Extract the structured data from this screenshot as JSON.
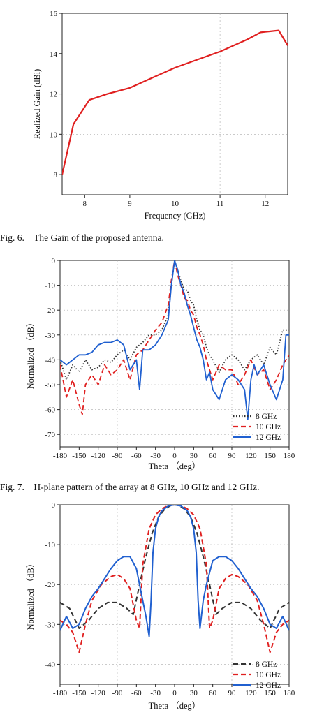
{
  "captions": {
    "fig6": "Fig. 6.    The Gain of the proposed antenna.",
    "fig7": "Fig. 7.    H-plane pattern of the array at 8 GHz, 10 GHz and 12 GHz."
  },
  "chart_data": [
    {
      "type": "line",
      "xlabel": "Frequency (GHz)",
      "ylabel": "Realized Gain (dBi)",
      "xlim": [
        7.5,
        12.5
      ],
      "ylim": [
        7,
        16
      ],
      "xticks": [
        "8",
        "9",
        "10",
        "11",
        "12"
      ],
      "yticks": [
        "8",
        "10",
        "12",
        "14",
        "16"
      ],
      "grid": "dotted",
      "series": [
        {
          "color": "#e02020",
          "style": "solid",
          "x": [
            7.5,
            7.6,
            7.75,
            8.1,
            8.5,
            9.0,
            9.5,
            10.0,
            10.5,
            11.0,
            11.3,
            11.6,
            11.9,
            12.1,
            12.3,
            12.5
          ],
          "y": [
            8.0,
            9.0,
            10.5,
            11.7,
            12.0,
            12.3,
            12.8,
            13.3,
            13.7,
            14.1,
            14.4,
            14.7,
            15.05,
            15.1,
            15.15,
            14.4
          ]
        }
      ]
    },
    {
      "type": "line",
      "xlabel": "Theta （deg）",
      "ylabel": "Normalized （dB）",
      "xlim": [
        -180,
        180
      ],
      "ylim": [
        -75,
        0
      ],
      "xticks": [
        "-180",
        "-150",
        "-120",
        "-90",
        "-60",
        "-30",
        "0",
        "30",
        "60",
        "90",
        "120",
        "150",
        "180"
      ],
      "yticks": [
        "0",
        "-10",
        "-20",
        "-30",
        "-40",
        "-50",
        "-60",
        "-70"
      ],
      "grid": "dotted",
      "legend_position": "bottom-right",
      "series": [
        {
          "name": "8 GHz",
          "color": "#333333",
          "style": "dotted",
          "x": [
            -180,
            -170,
            -160,
            -150,
            -140,
            -130,
            -120,
            -110,
            -100,
            -90,
            -80,
            -70,
            -60,
            -50,
            -40,
            -30,
            -20,
            -10,
            -5,
            0,
            5,
            10,
            15,
            20,
            25,
            30,
            35,
            40,
            45,
            50,
            55,
            60,
            70,
            80,
            90,
            100,
            110,
            120,
            130,
            140,
            150,
            160,
            170,
            180
          ],
          "y": [
            -40,
            -48,
            -42,
            -45,
            -40,
            -44,
            -43,
            -40,
            -41,
            -38,
            -36,
            -40,
            -35,
            -33,
            -30,
            -30,
            -28,
            -22,
            -10,
            0,
            -4,
            -8,
            -12,
            -12,
            -16,
            -18,
            -24,
            -28,
            -30,
            -35,
            -38,
            -40,
            -45,
            -40,
            -38,
            -40,
            -44,
            -40,
            -38,
            -42,
            -35,
            -38,
            -28,
            -28
          ]
        },
        {
          "name": "10 GHz",
          "color": "#e02020",
          "style": "dashed",
          "x": [
            -180,
            -170,
            -160,
            -150,
            -145,
            -140,
            -130,
            -120,
            -110,
            -100,
            -90,
            -80,
            -70,
            -60,
            -50,
            -40,
            -30,
            -20,
            -10,
            -5,
            0,
            5,
            10,
            15,
            20,
            25,
            30,
            35,
            40,
            45,
            50,
            55,
            60,
            70,
            80,
            90,
            100,
            110,
            120,
            130,
            140,
            150,
            160,
            170,
            180
          ],
          "y": [
            -42,
            -55,
            -48,
            -58,
            -62,
            -50,
            -46,
            -50,
            -42,
            -46,
            -44,
            -40,
            -48,
            -38,
            -36,
            -32,
            -28,
            -25,
            -18,
            -8,
            0,
            -6,
            -10,
            -15,
            -16,
            -20,
            -22,
            -27,
            -30,
            -34,
            -40,
            -44,
            -48,
            -42,
            -44,
            -44,
            -50,
            -46,
            -40,
            -46,
            -44,
            -52,
            -48,
            -42,
            -38
          ]
        },
        {
          "name": "12 GHz",
          "color": "#2060d0",
          "style": "solid",
          "x": [
            -180,
            -170,
            -160,
            -150,
            -140,
            -130,
            -120,
            -110,
            -100,
            -90,
            -80,
            -70,
            -60,
            -55,
            -50,
            -40,
            -30,
            -20,
            -10,
            -5,
            0,
            5,
            10,
            15,
            20,
            25,
            30,
            35,
            40,
            45,
            50,
            55,
            60,
            70,
            80,
            90,
            100,
            110,
            115,
            120,
            125,
            130,
            140,
            150,
            160,
            170,
            175,
            180
          ],
          "y": [
            -40,
            -42,
            -40,
            -38,
            -38,
            -37,
            -34,
            -33,
            -33,
            -32,
            -34,
            -44,
            -40,
            -52,
            -36,
            -36,
            -34,
            -30,
            -24,
            -10,
            0,
            -4,
            -10,
            -13,
            -18,
            -22,
            -27,
            -32,
            -35,
            -40,
            -48,
            -45,
            -52,
            -56,
            -48,
            -46,
            -48,
            -52,
            -64,
            -48,
            -42,
            -46,
            -42,
            -50,
            -56,
            -48,
            -30,
            -30
          ]
        }
      ]
    },
    {
      "type": "line",
      "xlabel": "Theta （deg）",
      "ylabel": "Normalized （dB）",
      "xlim": [
        -180,
        180
      ],
      "ylim": [
        -45,
        0
      ],
      "xticks": [
        "-180",
        "-150",
        "-120",
        "-90",
        "-60",
        "-30",
        "0",
        "30",
        "60",
        "90",
        "120",
        "150",
        "180"
      ],
      "yticks": [
        "0",
        "-10",
        "-20",
        "-30",
        "-40"
      ],
      "grid": "dotted",
      "legend_position": "bottom-right",
      "series": [
        {
          "name": "8 GHz",
          "color": "#333333",
          "style": "dashed",
          "x": [
            -180,
            -165,
            -150,
            -135,
            -120,
            -105,
            -90,
            -75,
            -65,
            -55,
            -45,
            -35,
            -25,
            -15,
            -5,
            0,
            5,
            15,
            25,
            35,
            45,
            55,
            65,
            75,
            90,
            105,
            120,
            135,
            150,
            165,
            180
          ],
          "y": [
            -24.5,
            -26,
            -31,
            -29,
            -26,
            -24.5,
            -24.5,
            -26,
            -27.5,
            -20,
            -13,
            -7,
            -3,
            -1,
            -0.1,
            0,
            -0.1,
            -1,
            -3,
            -7,
            -13,
            -20,
            -27.5,
            -26,
            -24.5,
            -24.5,
            -26,
            -29,
            -31,
            -26,
            -24.5
          ]
        },
        {
          "name": "10 GHz",
          "color": "#e02020",
          "style": "dashed",
          "x": [
            -180,
            -170,
            -160,
            -150,
            -140,
            -130,
            -115,
            -100,
            -90,
            -80,
            -70,
            -60,
            -55,
            -50,
            -40,
            -30,
            -20,
            -10,
            0,
            10,
            20,
            30,
            40,
            50,
            55,
            60,
            70,
            80,
            90,
            100,
            115,
            130,
            140,
            150,
            160,
            170,
            180
          ],
          "y": [
            -29,
            -30,
            -32,
            -37,
            -30,
            -24,
            -20,
            -18,
            -17.5,
            -18.5,
            -21,
            -29,
            -31,
            -15,
            -6,
            -2.5,
            -1,
            -0.2,
            0,
            -0.2,
            -1,
            -2.5,
            -6,
            -15,
            -31,
            -29,
            -21,
            -18.5,
            -17.5,
            -18,
            -20,
            -24,
            -30,
            -37,
            -32,
            -30,
            -29
          ]
        },
        {
          "name": "12 GHz",
          "color": "#2060d0",
          "style": "solid",
          "x": [
            -180,
            -170,
            -160,
            -150,
            -140,
            -130,
            -120,
            -110,
            -100,
            -90,
            -80,
            -70,
            -60,
            -50,
            -45,
            -40,
            -37,
            -34,
            -30,
            -25,
            -20,
            -10,
            0,
            10,
            20,
            25,
            30,
            34,
            37,
            40,
            45,
            50,
            60,
            70,
            80,
            90,
            100,
            110,
            120,
            130,
            140,
            150,
            160,
            170,
            180
          ],
          "y": [
            -31.5,
            -28,
            -31,
            -30,
            -26,
            -23,
            -21,
            -18.5,
            -16,
            -14,
            -13,
            -13,
            -16,
            -24,
            -28,
            -33,
            -24,
            -12,
            -6,
            -3,
            -1.5,
            -0.3,
            0,
            -0.3,
            -1.5,
            -3,
            -6,
            -12,
            -24,
            -31,
            -24,
            -20,
            -14,
            -13,
            -13,
            -14,
            -16,
            -18.5,
            -21,
            -23,
            -26,
            -30,
            -31,
            -28,
            -31.5
          ]
        }
      ]
    }
  ]
}
